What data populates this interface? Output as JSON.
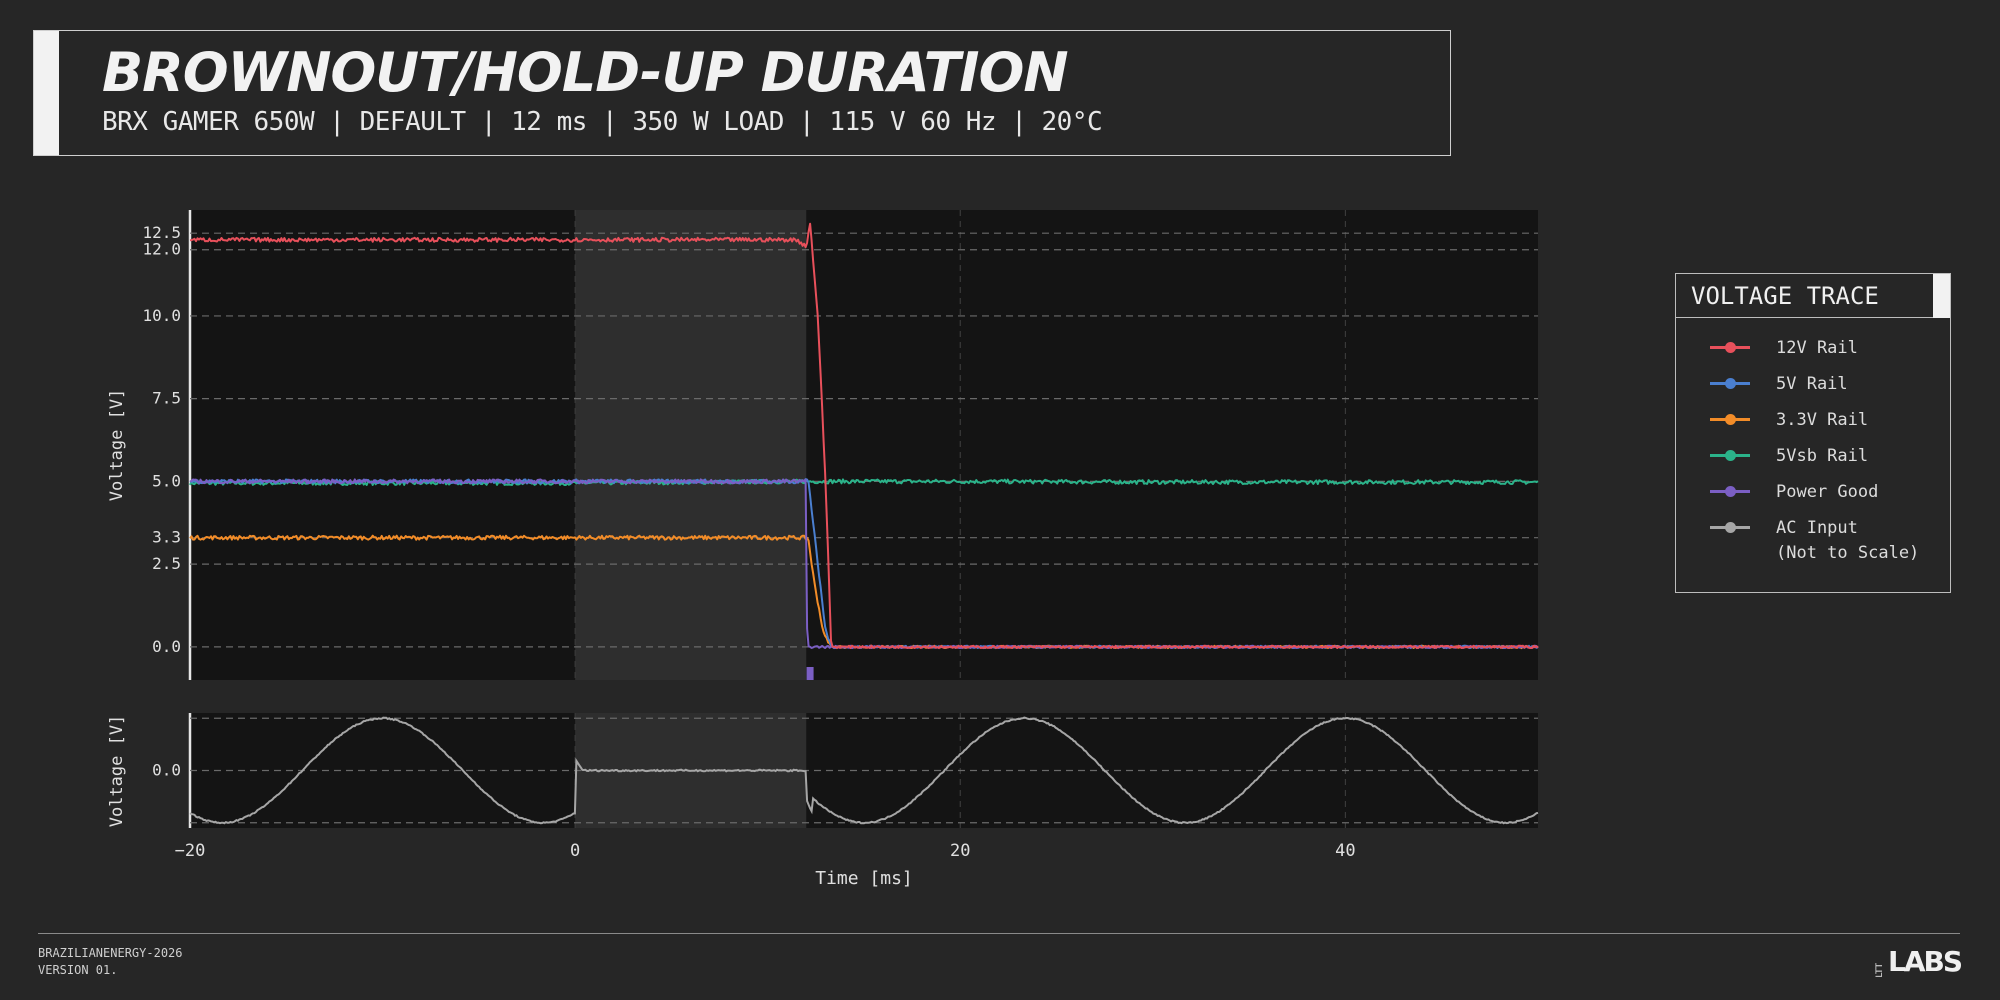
{
  "header": {
    "title": "BROWNOUT/HOLD-UP DURATION",
    "subtitle": "BRX GAMER 650W | DEFAULT | 12 ms | 350 W LOAD | 115 V 60 Hz | 20°C"
  },
  "legend": {
    "title": "VOLTAGE TRACE",
    "items": [
      {
        "label": "12V Rail",
        "color": "#e8505b"
      },
      {
        "label": "5V Rail",
        "color": "#4a7fd0"
      },
      {
        "label": "3.3V Rail",
        "color": "#f28c28"
      },
      {
        "label": "5Vsb Rail",
        "color": "#2bb38a"
      },
      {
        "label": "Power Good",
        "color": "#7b5fc4"
      },
      {
        "label": "AC Input\n(Not to Scale)",
        "color": "#a6a6a6"
      }
    ]
  },
  "footer": {
    "line1": "BRAZILIANENERGY-2026",
    "line2": "VERSION 01.",
    "logo_small": "LTT",
    "logo_big": "LABS"
  },
  "chart_data": [
    {
      "type": "line",
      "xlabel": "Time [ms]",
      "ylabel": "Voltage [V]",
      "xlim": [
        -20,
        50
      ],
      "ylim": [
        -1,
        13.2
      ],
      "yticks": [
        0.0,
        2.5,
        3.3,
        5.0,
        7.5,
        10.0,
        12.0,
        12.5
      ],
      "ytick_labels": [
        "0.0",
        "2.5",
        "3.3",
        "5.0",
        "7.5",
        "10.0",
        "12.0",
        "12.5"
      ],
      "xgrid": [
        0,
        20,
        40
      ],
      "shaded_region": [
        0,
        12
      ],
      "grid": true,
      "series": [
        {
          "name": "12V Rail",
          "color": "#e8505b",
          "x": [
            -20,
            -10,
            0,
            11.5,
            12.0,
            12.2,
            12.6,
            13.0,
            13.3,
            50
          ],
          "y": [
            12.3,
            12.3,
            12.3,
            12.3,
            12.1,
            12.8,
            10.0,
            5.0,
            0.0,
            0.0
          ]
        },
        {
          "name": "5V Rail",
          "color": "#4a7fd0",
          "x": [
            -20,
            0,
            11.9,
            12.1,
            12.5,
            13.0,
            13.3,
            50
          ],
          "y": [
            5.0,
            5.0,
            5.0,
            5.1,
            3.0,
            0.5,
            0.0,
            0.0
          ]
        },
        {
          "name": "3.3V Rail",
          "color": "#f28c28",
          "x": [
            -20,
            0,
            11.9,
            12.1,
            12.4,
            12.9,
            13.3,
            50
          ],
          "y": [
            3.3,
            3.3,
            3.3,
            3.3,
            2.0,
            0.4,
            0.0,
            0.0
          ]
        },
        {
          "name": "5Vsb Rail",
          "color": "#2bb38a",
          "x": [
            -20,
            0,
            12,
            20,
            30,
            40,
            50
          ],
          "y": [
            4.95,
            4.95,
            5.0,
            5.0,
            4.98,
            4.98,
            4.98
          ]
        },
        {
          "name": "Power Good",
          "color": "#7b5fc4",
          "x": [
            -20,
            0,
            11.9,
            12.0,
            12.05,
            12.1,
            50
          ],
          "y": [
            5.0,
            5.0,
            5.0,
            5.0,
            0.0,
            0.0,
            0.0
          ]
        }
      ],
      "markers": [
        {
          "x": 12.2,
          "color": "#7b5fc4"
        }
      ]
    },
    {
      "type": "line",
      "xlabel": "Time [ms]",
      "ylabel": "Voltage [V]",
      "xlim": [
        -20,
        50
      ],
      "ylim": [
        -1.1,
        1.1
      ],
      "xticks": [
        -20,
        0,
        20,
        40
      ],
      "xtick_labels": [
        "−20",
        "0",
        "20",
        "40"
      ],
      "yticks": [
        0.0
      ],
      "ytick_labels": [
        "0.0"
      ],
      "shaded_region": [
        0,
        12
      ],
      "grid": true,
      "series": [
        {
          "name": "AC Input (Not to Scale)",
          "color": "#a6a6a6",
          "waveform": "sine",
          "frequency_hz": 60,
          "amplitude": 1.0,
          "phase_deg": -54,
          "dropout": [
            0,
            12
          ]
        }
      ]
    }
  ]
}
